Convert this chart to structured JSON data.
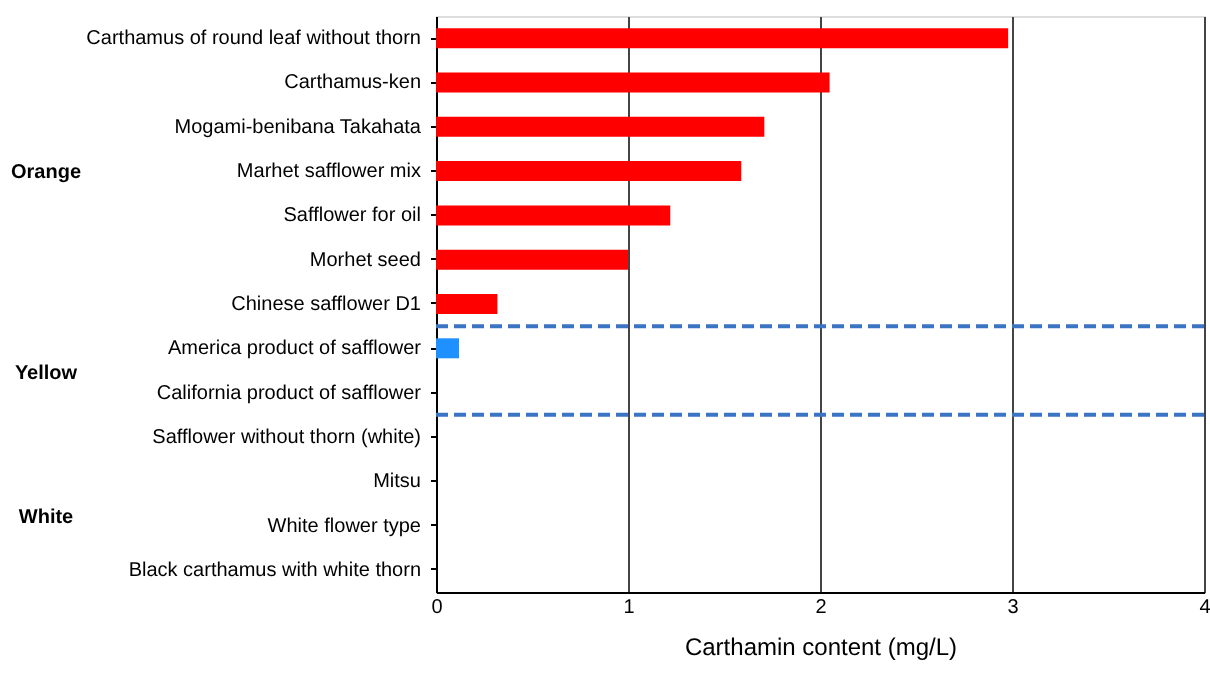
{
  "chart_data": {
    "type": "bar",
    "orientation": "horizontal",
    "xlabel": "Carthamin content (mg/L)",
    "categories": [
      "Carthamus of round leaf without thorn",
      "Carthamus-ken",
      "Mogami-benibana Takahata",
      "Marhet safflower mix",
      "Safflower for oil",
      "Morhet seed",
      "Chinese safflower D1",
      "America product of safflower",
      "California product of safflower",
      "Safflower without thorn (white)",
      "Mitsu",
      "White flower type",
      "Black carthamus with white thorn"
    ],
    "values": [
      2.98,
      2.05,
      1.71,
      1.59,
      1.22,
      1.0,
      0.32,
      0.12,
      0,
      0,
      0,
      0,
      0
    ],
    "colors": [
      "#ff0000",
      "#ff0000",
      "#ff0000",
      "#ff0000",
      "#ff0000",
      "#ff0000",
      "#ff0000",
      "#1e90ff",
      "#1e90ff",
      "#ffffff",
      "#ffffff",
      "#ffffff",
      "#ffffff"
    ],
    "xlim": [
      0,
      4
    ],
    "xticks": [
      0,
      1,
      2,
      3,
      4
    ],
    "grid": "x",
    "annotations": [
      "Orange",
      "Yellow",
      "White"
    ]
  }
}
